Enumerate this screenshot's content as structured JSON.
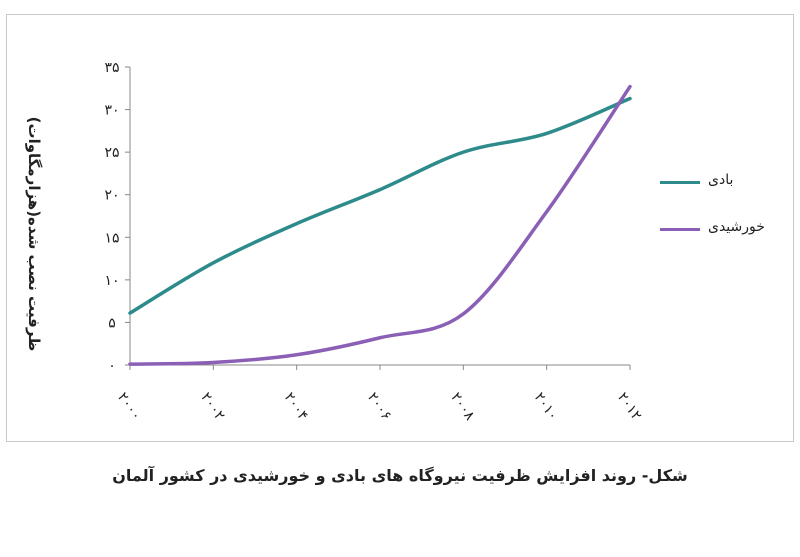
{
  "chart_data": {
    "type": "line",
    "title": "",
    "xlabel": "",
    "ylabel": "ظرفیت نصب شده(هزارمگاوات)",
    "x": [
      "۲۰۰۰",
      "۲۰۰۲",
      "۲۰۰۴",
      "۲۰۰۶",
      "۲۰۰۸",
      "۲۰۱۰",
      "۲۰۱۲"
    ],
    "xlim": [
      2000,
      2012
    ],
    "ylim": [
      0,
      35
    ],
    "yticks": [
      "۰",
      "۵",
      "۱۰",
      "۱۵",
      "۲۰",
      "۲۵",
      "۳۰",
      "۳۵"
    ],
    "grid": false,
    "legend_position": "right",
    "series": [
      {
        "name": "بادی",
        "color": "#2e8b8b",
        "values": [
          6.1,
          12.0,
          16.6,
          20.6,
          25.0,
          27.2,
          31.3
        ]
      },
      {
        "name": "خورشیدی",
        "color": "#8a5fb5",
        "values": [
          0.1,
          0.3,
          1.2,
          3.2,
          6.0,
          18.0,
          32.7
        ]
      }
    ]
  },
  "caption": "شکل- روند افزایش ظرفیت نیروگاه های بادی و خورشیدی در کشور آلمان"
}
